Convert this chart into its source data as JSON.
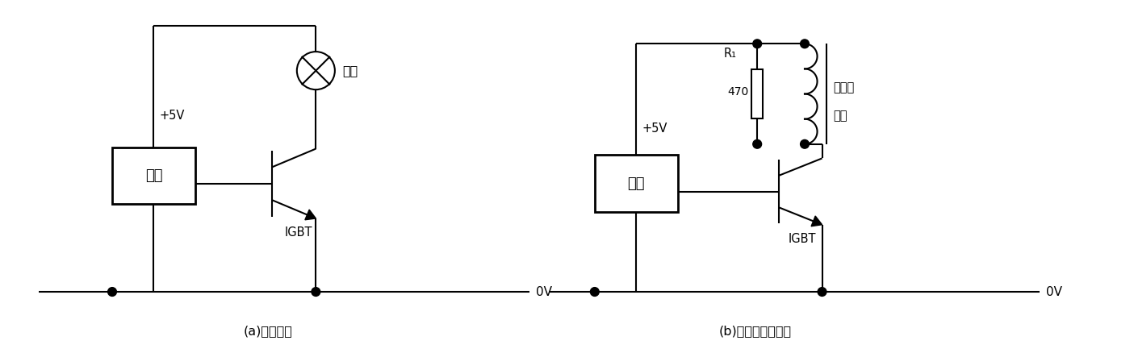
{
  "bg_color": "#ffffff",
  "line_color": "#000000",
  "line_width": 1.5,
  "fig_width": 14.05,
  "fig_height": 4.33,
  "caption_a": "(a)驱动车灯",
  "caption_b": "(b)驱动继电器负载",
  "label_logic": "逻辑",
  "label_igbt": "IGBT",
  "label_5v": "+5V",
  "label_0v": "0V",
  "label_lamp": "车灯",
  "label_r1_top": "R₁",
  "label_470": "470",
  "label_relay_line1": "继电器",
  "label_relay_line2": "线圈"
}
